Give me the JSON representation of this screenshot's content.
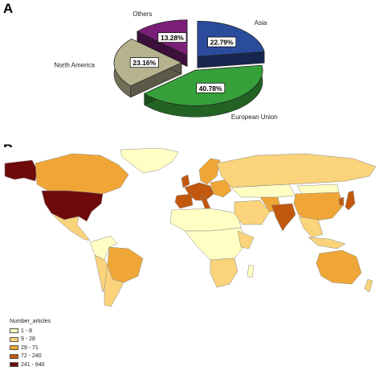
{
  "panels": {
    "a_label": "A",
    "b_label": "B"
  },
  "chart_data": [
    {
      "type": "pie",
      "categories": [
        "Asia",
        "European Union",
        "North America",
        "Others"
      ],
      "values": [
        22.79,
        40.78,
        23.16,
        13.28
      ],
      "data_labels": [
        "22.79%",
        "40.78%",
        "23.16%",
        "13.28%"
      ],
      "colors": [
        "#2b4c9b",
        "#37a03a",
        "#b6b28d",
        "#7a1f78"
      ],
      "exploded": true
    },
    {
      "type": "heatmap",
      "subtype": "choropleth-world-map",
      "legend_title": "Number_articles",
      "legend": [
        {
          "label": "1 - 8",
          "color": "#ffffc4"
        },
        {
          "label": "9 - 28",
          "color": "#fad37a"
        },
        {
          "label": "29 - 71",
          "color": "#f0a636"
        },
        {
          "label": "72 - 240",
          "color": "#c2580e"
        },
        {
          "label": "241 - 640",
          "color": "#6e0a0a"
        }
      ]
    }
  ]
}
